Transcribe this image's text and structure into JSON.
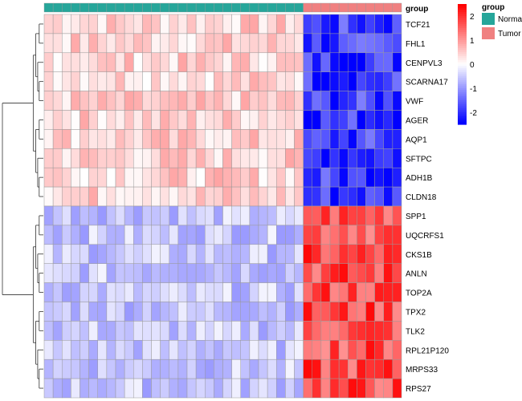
{
  "chart_data": {
    "type": "heatmap",
    "annotation_label": "group",
    "rows": [
      "TCF21",
      "FHL1",
      "CENPVL3",
      "SCARNA17",
      "VWF",
      "AGER",
      "AQP1",
      "SFTPC",
      "ADH1B",
      "CLDN18",
      "SPP1",
      "UQCRFS1",
      "CKS1B",
      "ANLN",
      "TOP2A",
      "TPX2",
      "TLK2",
      "RPL21P120",
      "MRPS33",
      "RPS27"
    ],
    "groups": [
      {
        "name": "Normal",
        "count": 29,
        "color": "#26a69a"
      },
      {
        "name": "Tumor",
        "count": 11,
        "color": "#f08080"
      }
    ],
    "color_scale": {
      "min": -2.5,
      "max": 2.5,
      "low": "#0000ff",
      "mid": "#ffffff",
      "high": "#ff0000"
    },
    "legend_title": "group",
    "colorbar_ticks": [
      2,
      1,
      0,
      -1,
      -2
    ],
    "colorbar_tick_labels": [
      "2",
      "1",
      "0",
      "-1",
      "-2"
    ],
    "cluster_blocks": [
      {
        "rows": [
          0,
          9
        ],
        "normal_mean": 0.45,
        "tumor_mean": -1.95
      },
      {
        "rows": [
          10,
          19
        ],
        "normal_mean": -0.55,
        "tumor_mean": 1.75
      }
    ]
  }
}
